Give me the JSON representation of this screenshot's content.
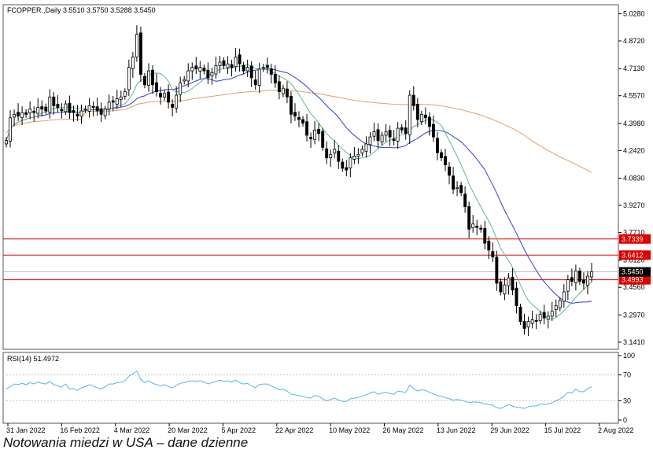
{
  "caption": "Notowania miedzi w USA – dane dzienne",
  "colors": {
    "frame": "#555555",
    "grid": "#c8c8c8",
    "candle_up": "#ffffff",
    "candle_down": "#000000",
    "ma_fast": "#5fb88a",
    "ma_mid": "#3b3bc8",
    "ma_slow": "#e0a070",
    "hline": "#e00000",
    "rsi_line": "#5ab4e6",
    "label_bg": "#e00000",
    "price_label_bg": "#000000"
  },
  "chart_data": [
    {
      "type": "candlestick",
      "title": "FCOPPER.,Daily 3.5510 3.5750 3.5288 3.5450",
      "symbol": "FCOPPER.,Daily",
      "ohlc_header": [
        "3.5510",
        "3.5750",
        "3.5288",
        "3.5450"
      ],
      "y_ticks": [
        3.141,
        3.297,
        3.456,
        3.612,
        3.771,
        3.927,
        4.083,
        4.242,
        4.398,
        4.557,
        4.713,
        4.872,
        5.028
      ],
      "y_tick_labels": [
        "3.1410",
        "3.2970",
        "3.4560",
        "3.6120",
        "3.7710",
        "3.9270",
        "4.0830",
        "4.2420",
        "4.3980",
        "4.5570",
        "4.7130",
        "4.8720",
        "5.0280"
      ],
      "ylim": [
        3.1,
        5.08
      ],
      "x_labels": [
        "31 Jan 2022",
        "16 Feb 2022",
        "4 Mar 2022",
        "20 Mar 2022",
        "5 Apr 2022",
        "22 Apr 2022",
        "10 May 2022",
        "26 May 2022",
        "13 Jun 2022",
        "29 Jun 2022",
        "15 Jul 2022",
        "2 Aug 2022"
      ],
      "horizontal_levels": [
        {
          "value": 3.7339,
          "label": "3.7339"
        },
        {
          "value": 3.6412,
          "label": "3.6412"
        },
        {
          "value": 3.4993,
          "label": "3.4993"
        }
      ],
      "current_price": {
        "value": 3.545,
        "label": "3.5450"
      },
      "close": [
        4.3,
        4.43,
        4.45,
        4.44,
        4.46,
        4.45,
        4.48,
        4.46,
        4.49,
        4.48,
        4.47,
        4.55,
        4.5,
        4.49,
        4.47,
        4.51,
        4.46,
        4.46,
        4.44,
        4.47,
        4.48,
        4.5,
        4.49,
        4.47,
        4.45,
        4.48,
        4.52,
        4.52,
        4.54,
        4.55,
        4.58,
        4.72,
        4.78,
        4.91,
        4.68,
        4.62,
        4.7,
        4.62,
        4.58,
        4.55,
        4.57,
        4.52,
        4.49,
        4.56,
        4.63,
        4.65,
        4.7,
        4.72,
        4.71,
        4.72,
        4.7,
        4.66,
        4.69,
        4.73,
        4.75,
        4.73,
        4.74,
        4.72,
        4.78,
        4.74,
        4.7,
        4.72,
        4.66,
        4.62,
        4.71,
        4.72,
        4.72,
        4.68,
        4.63,
        4.58,
        4.6,
        4.55,
        4.45,
        4.44,
        4.42,
        4.4,
        4.33,
        4.31,
        4.36,
        4.34,
        4.26,
        4.2,
        4.22,
        4.25,
        4.18,
        4.14,
        4.13,
        4.2,
        4.21,
        4.22,
        4.25,
        4.28,
        4.32,
        4.35,
        4.3,
        4.33,
        4.35,
        4.32,
        4.3,
        4.37,
        4.36,
        4.34,
        4.56,
        4.5,
        4.42,
        4.45,
        4.43,
        4.38,
        4.32,
        4.23,
        4.2,
        4.16,
        4.1,
        4.02,
        4.03,
        4.0,
        3.92,
        3.79,
        3.82,
        3.8,
        3.79,
        3.71,
        3.67,
        3.63,
        3.48,
        3.43,
        3.47,
        3.51,
        3.44,
        3.35,
        3.26,
        3.22,
        3.26,
        3.27,
        3.26,
        3.3,
        3.28,
        3.29,
        3.32,
        3.35,
        3.38,
        3.43,
        3.5,
        3.49,
        3.55,
        3.49,
        3.48,
        3.52,
        3.545
      ],
      "series": [
        {
          "name": "RSI(14) 51.4972",
          "panel": "rsi",
          "ylim": [
            0,
            100
          ],
          "y_ticks": [
            0,
            30,
            70,
            100
          ],
          "values": [
            48,
            52,
            56,
            55,
            57,
            55,
            58,
            56,
            59,
            57,
            56,
            60,
            55,
            53,
            51,
            56,
            48,
            49,
            46,
            50,
            52,
            55,
            53,
            50,
            48,
            52,
            56,
            56,
            58,
            59,
            61,
            68,
            72,
            76,
            63,
            58,
            61,
            57,
            55,
            53,
            55,
            52,
            50,
            54,
            57,
            58,
            60,
            61,
            60,
            61,
            59,
            56,
            58,
            60,
            62,
            60,
            61,
            59,
            62,
            58,
            56,
            57,
            53,
            50,
            55,
            56,
            56,
            53,
            50,
            47,
            48,
            45,
            40,
            39,
            38,
            37,
            35,
            34,
            38,
            37,
            33,
            30,
            32,
            34,
            31,
            29,
            29,
            33,
            34,
            35,
            37,
            39,
            42,
            44,
            40,
            42,
            43,
            41,
            40,
            45,
            44,
            43,
            54,
            49,
            45,
            47,
            46,
            43,
            41,
            38,
            37,
            35,
            33,
            31,
            32,
            31,
            29,
            27,
            28,
            28,
            27,
            25,
            24,
            23,
            19,
            18,
            21,
            24,
            22,
            20,
            19,
            18,
            21,
            22,
            22,
            25,
            24,
            25,
            27,
            30,
            33,
            37,
            43,
            42,
            48,
            44,
            44,
            49,
            51.5
          ]
        }
      ]
    }
  ]
}
